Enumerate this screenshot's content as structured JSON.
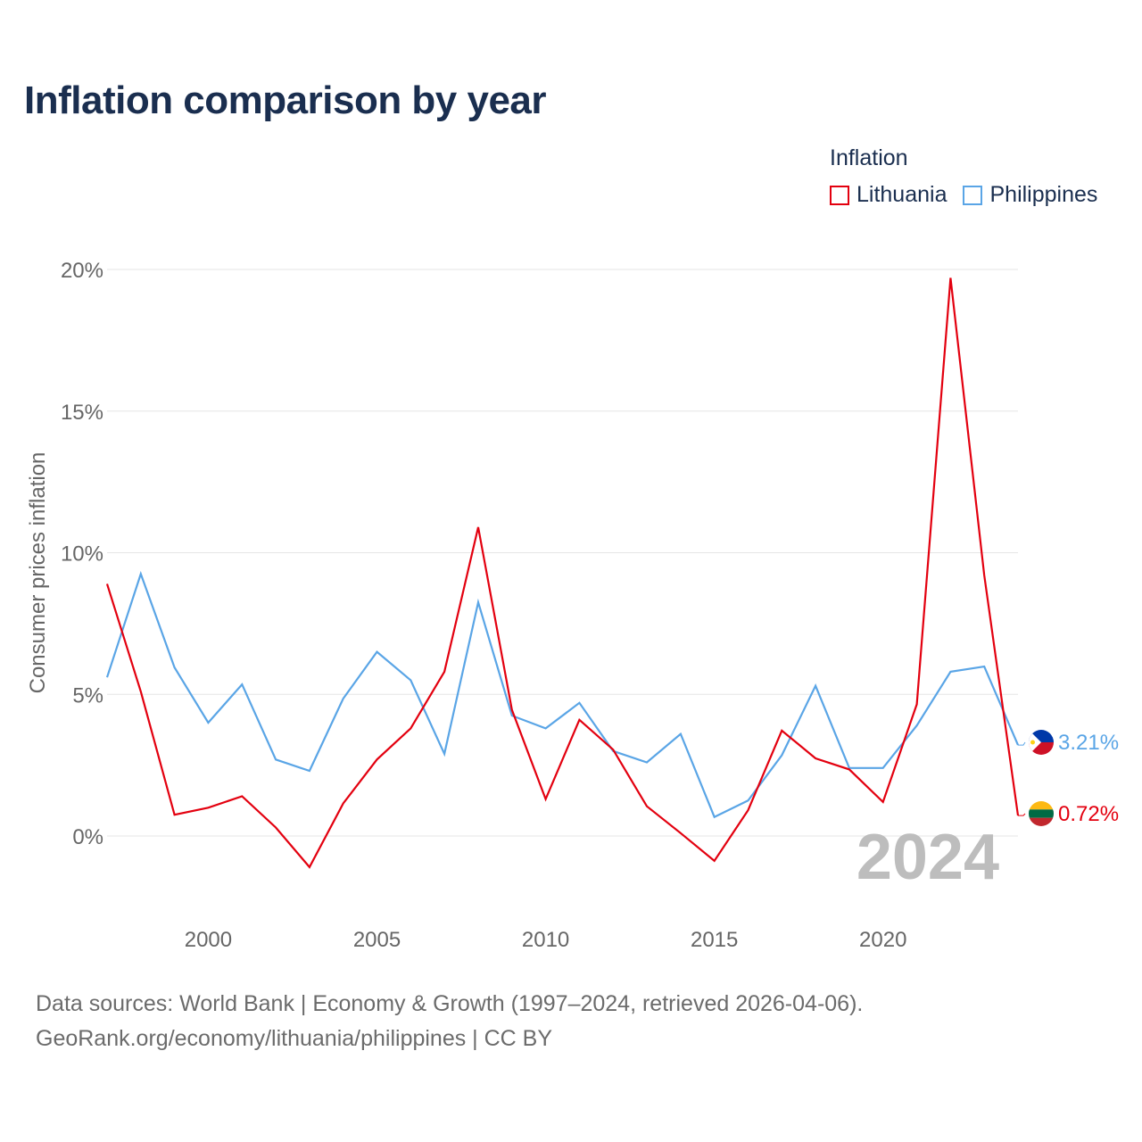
{
  "title": "Inflation comparison by year",
  "legend": {
    "title": "Inflation",
    "items": [
      {
        "label": "Lithuania",
        "color": "#e3000f"
      },
      {
        "label": "Philippines",
        "color": "#5aa5e6"
      }
    ]
  },
  "chart_data": {
    "type": "line",
    "ylabel": "Consumer prices inflation",
    "xlabel": "",
    "ylim": [
      -2.5,
      20
    ],
    "xlim": [
      1997,
      2024
    ],
    "yticks": [
      {
        "value": 0,
        "label": "0%"
      },
      {
        "value": 5,
        "label": "5%"
      },
      {
        "value": 10,
        "label": "10%"
      },
      {
        "value": 15,
        "label": "15%"
      },
      {
        "value": 20,
        "label": "20%"
      }
    ],
    "xticks": [
      {
        "value": 2000,
        "label": "2000"
      },
      {
        "value": 2005,
        "label": "2005"
      },
      {
        "value": 2010,
        "label": "2010"
      },
      {
        "value": 2015,
        "label": "2015"
      },
      {
        "value": 2020,
        "label": "2020"
      }
    ],
    "grid": true,
    "x": [
      1997,
      1998,
      1999,
      2000,
      2001,
      2002,
      2003,
      2004,
      2005,
      2006,
      2007,
      2008,
      2009,
      2010,
      2011,
      2012,
      2013,
      2014,
      2015,
      2016,
      2017,
      2018,
      2019,
      2020,
      2021,
      2022,
      2023,
      2024
    ],
    "series": [
      {
        "name": "Lithuania",
        "color": "#e3000f",
        "end_label": "0.72%",
        "values": [
          8.9,
          5.1,
          0.75,
          1.0,
          1.4,
          0.3,
          -1.1,
          1.15,
          2.7,
          3.8,
          5.8,
          10.9,
          4.45,
          1.3,
          4.1,
          3.05,
          1.05,
          0.1,
          -0.88,
          0.91,
          3.72,
          2.74,
          2.35,
          1.2,
          4.65,
          19.7,
          9.2,
          0.72
        ]
      },
      {
        "name": "Philippines",
        "color": "#5aa5e6",
        "end_label": "3.21%",
        "values": [
          5.6,
          9.25,
          5.95,
          4.0,
          5.35,
          2.7,
          2.3,
          4.85,
          6.5,
          5.5,
          2.9,
          8.25,
          4.25,
          3.8,
          4.7,
          3.0,
          2.6,
          3.6,
          0.67,
          1.25,
          2.85,
          5.3,
          2.4,
          2.4,
          3.9,
          5.8,
          5.98,
          3.21
        ]
      }
    ],
    "year_annotation": "2024"
  },
  "footer": {
    "line1": "Data sources: World Bank | Economy & Growth (1997–2024, retrieved 2026-04-06).",
    "line2": "GeoRank.org/economy/lithuania/philippines | CC BY"
  }
}
